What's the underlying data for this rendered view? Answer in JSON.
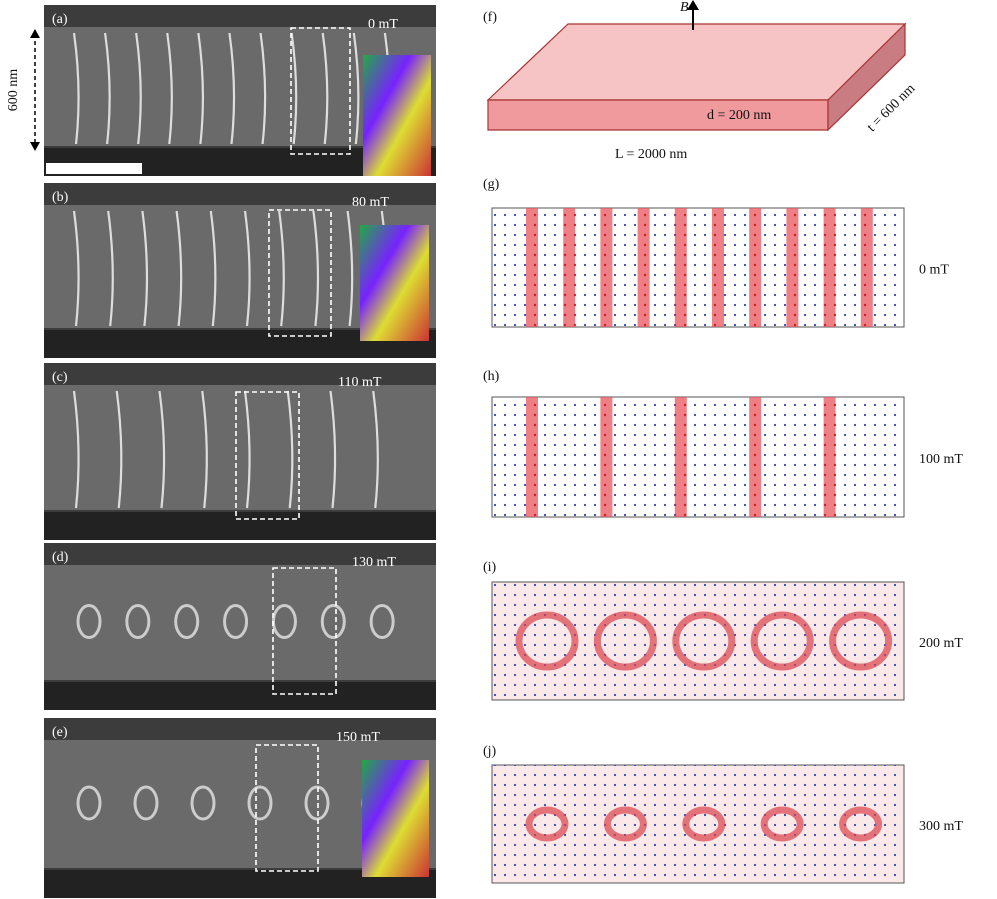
{
  "scale_label": "600 nm",
  "left_panels": [
    {
      "label": "(a)",
      "field": "0 mT"
    },
    {
      "label": "(b)",
      "field": "80 mT"
    },
    {
      "label": "(c)",
      "field": "110 mT"
    },
    {
      "label": "(d)",
      "field": "130 mT"
    },
    {
      "label": "(e)",
      "field": "150 mT"
    }
  ],
  "diagram": {
    "label": "(f)",
    "field_symbol": "B",
    "thickness": "d = 200 nm",
    "length": "L = 2000 nm",
    "width": "t = 600 nm"
  },
  "right_panels": [
    {
      "label": "(g)",
      "field": "0 mT"
    },
    {
      "label": "(h)",
      "field": "100 mT"
    },
    {
      "label": "(i)",
      "field": "200 mT"
    },
    {
      "label": "(j)",
      "field": "300 mT"
    }
  ]
}
